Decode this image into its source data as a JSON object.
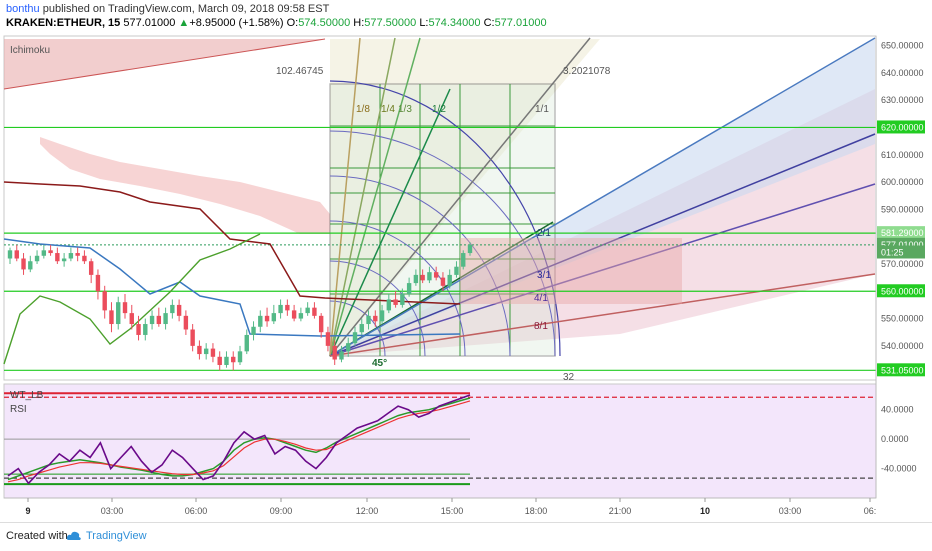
{
  "header": {
    "user": "bonthu",
    "published": " published on TradingView.com, March 09, 2018 09:58 EST",
    "symbol": "KRAKEN:ETHEUR, 15",
    "last": "577.01000",
    "change_arrow": "▲",
    "change": "+8.95000 (+1.58%)",
    "o_label": "O:",
    "o_val": "574.50000",
    "h_label": "H:",
    "h_val": "577.50000",
    "l_label": "L:",
    "l_val": "574.34000",
    "c_label": "C:",
    "c_val": "577.01000"
  },
  "footer": {
    "created_with": "Created with",
    "brand": "TradingView"
  },
  "chart_data": [
    {
      "type": "candlestick",
      "indicator_label": "Ichimoku",
      "ylim": [
        527.5,
        653.5
      ],
      "y_ticks": [
        "650.00000",
        "640.00000",
        "630.00000",
        "620.00000",
        "610.00000",
        "600.00000",
        "590.00000",
        "580.00000",
        "570.00000",
        "560.00000",
        "550.00000",
        "540.00000",
        "530.00000"
      ],
      "x_ticks": [
        "9",
        "03:00",
        "06:00",
        "09:00",
        "12:00",
        "15:00",
        "18:00",
        "21:00",
        "10",
        "03:00",
        "06:"
      ],
      "price_tags": [
        {
          "label": "620.00000",
          "value": 620.0,
          "color": "#22cc22"
        },
        {
          "label": "581.29000",
          "value": 581.29,
          "color": "#8fdc8f"
        },
        {
          "label": "577.01000",
          "value": 577.01,
          "color": "#5aa860"
        },
        {
          "label": "01:25",
          "value": 574.2,
          "color": "#5aa860"
        },
        {
          "label": "560.00000",
          "value": 560.0,
          "color": "#22cc22"
        },
        {
          "label": "531.05000",
          "value": 531.05,
          "color": "#22cc22"
        }
      ],
      "horizontal_lines": [
        620.0,
        581.29,
        560.0,
        531.05
      ],
      "last_price": 577.01,
      "gann_labels": [
        "102.46745",
        "3.2021078",
        "1/8",
        "1/4",
        "1/3",
        "1/2",
        "1/1",
        "2/1",
        "3/1",
        "4/1",
        "8/1",
        "45°",
        "32"
      ],
      "candles": [
        [
          572,
          575,
          576,
          570
        ],
        [
          575,
          572,
          577,
          571
        ],
        [
          572,
          568,
          574,
          566
        ],
        [
          568,
          571,
          573,
          567
        ],
        [
          571,
          573,
          575,
          570
        ],
        [
          573,
          575,
          577,
          572
        ],
        [
          575,
          574,
          577,
          573
        ],
        [
          574,
          571,
          576,
          570
        ],
        [
          571,
          572,
          574,
          569
        ],
        [
          572,
          574,
          576,
          571
        ],
        [
          574,
          573,
          576,
          571
        ],
        [
          573,
          571,
          575,
          570
        ],
        [
          571,
          566,
          572,
          563
        ],
        [
          566,
          560,
          568,
          557
        ],
        [
          560,
          553,
          562,
          550
        ],
        [
          553,
          548,
          556,
          545
        ],
        [
          548,
          556,
          558,
          546
        ],
        [
          556,
          552,
          559,
          550
        ],
        [
          552,
          548,
          555,
          546
        ],
        [
          548,
          544,
          551,
          542
        ],
        [
          544,
          548,
          550,
          542
        ],
        [
          548,
          551,
          553,
          546
        ],
        [
          551,
          548,
          554,
          547
        ],
        [
          548,
          552,
          554,
          546
        ],
        [
          552,
          555,
          557,
          550
        ],
        [
          555,
          551,
          557,
          549
        ],
        [
          551,
          546,
          553,
          544
        ],
        [
          546,
          540,
          548,
          538
        ],
        [
          540,
          537,
          542,
          535
        ],
        [
          537,
          539,
          541,
          535
        ],
        [
          539,
          536,
          541,
          534
        ],
        [
          536,
          533,
          538,
          531
        ],
        [
          533,
          536,
          538,
          532
        ],
        [
          536,
          534,
          538,
          531
        ],
        [
          534,
          538,
          540,
          533
        ],
        [
          538,
          544,
          546,
          537
        ],
        [
          544,
          547,
          549,
          542
        ],
        [
          547,
          551,
          553,
          545
        ],
        [
          551,
          549,
          554,
          547
        ],
        [
          549,
          552,
          555,
          548
        ],
        [
          552,
          555,
          557,
          550
        ],
        [
          555,
          553,
          557,
          551
        ],
        [
          553,
          550,
          555,
          549
        ],
        [
          550,
          552,
          554,
          549
        ],
        [
          552,
          554,
          556,
          551
        ],
        [
          554,
          551,
          556,
          550
        ],
        [
          551,
          545,
          552,
          543
        ],
        [
          545,
          540,
          547,
          538
        ],
        [
          540,
          535,
          542,
          533
        ],
        [
          535,
          538,
          540,
          534
        ],
        [
          538,
          541,
          543,
          536
        ],
        [
          541,
          545,
          547,
          540
        ],
        [
          545,
          548,
          550,
          544
        ],
        [
          548,
          551,
          553,
          546
        ],
        [
          551,
          549,
          553,
          547
        ],
        [
          549,
          553,
          555,
          548
        ],
        [
          553,
          557,
          559,
          552
        ],
        [
          557,
          555,
          560,
          554
        ],
        [
          555,
          559,
          561,
          554
        ],
        [
          559,
          563,
          565,
          558
        ],
        [
          563,
          566,
          568,
          562
        ],
        [
          566,
          564,
          568,
          563
        ],
        [
          564,
          567,
          569,
          563
        ],
        [
          567,
          565,
          569,
          564
        ],
        [
          565,
          562,
          567,
          560
        ],
        [
          562,
          566,
          568,
          561
        ],
        [
          566,
          569,
          571,
          565
        ],
        [
          569,
          574,
          575,
          568
        ],
        [
          574,
          577,
          578,
          573
        ]
      ],
      "wt_lb_label": "WT_LB",
      "rsi_label": "RSI",
      "rsi_ylim": [
        -80,
        75
      ],
      "rsi_y_ticks": [
        "40.0000",
        "0.0000",
        "-40.0000"
      ],
      "rsi_levels": {
        "upper_red": 57,
        "lower_black": -53
      },
      "rsi_purple": [
        -50,
        -40,
        -60,
        -45,
        -35,
        -20,
        -30,
        -15,
        -25,
        -5,
        -40,
        -25,
        -10,
        -30,
        -45,
        -35,
        -15,
        -25,
        -40,
        -55,
        -50,
        -30,
        -5,
        10,
        0,
        5,
        -20,
        -10,
        -15,
        -30,
        -40,
        -25,
        -5,
        5,
        15,
        20,
        25,
        35,
        45,
        40,
        30,
        35,
        45,
        50,
        55,
        60
      ],
      "rsi_green": [
        -55,
        -50,
        -45,
        -40,
        -35,
        -32,
        -30,
        -28,
        -30,
        -32,
        -35,
        -38,
        -40,
        -42,
        -45,
        -48,
        -50,
        -50,
        -48,
        -44,
        -40,
        -30,
        -15,
        -5,
        0,
        2,
        0,
        -5,
        -10,
        -15,
        -18,
        -12,
        -4,
        2,
        8,
        14,
        20,
        26,
        32,
        36,
        38,
        40,
        44,
        48,
        52,
        56
      ],
      "rsi_red": [
        -58,
        -55,
        -50,
        -46,
        -42,
        -38,
        -35,
        -32,
        -32,
        -33,
        -35,
        -37,
        -39,
        -41,
        -43,
        -45,
        -47,
        -48,
        -48,
        -46,
        -43,
        -36,
        -24,
        -12,
        -4,
        0,
        0,
        -3,
        -7,
        -12,
        -15,
        -14,
        -8,
        -2,
        4,
        10,
        16,
        22,
        28,
        32,
        35,
        37,
        40,
        44,
        48,
        52
      ]
    }
  ]
}
